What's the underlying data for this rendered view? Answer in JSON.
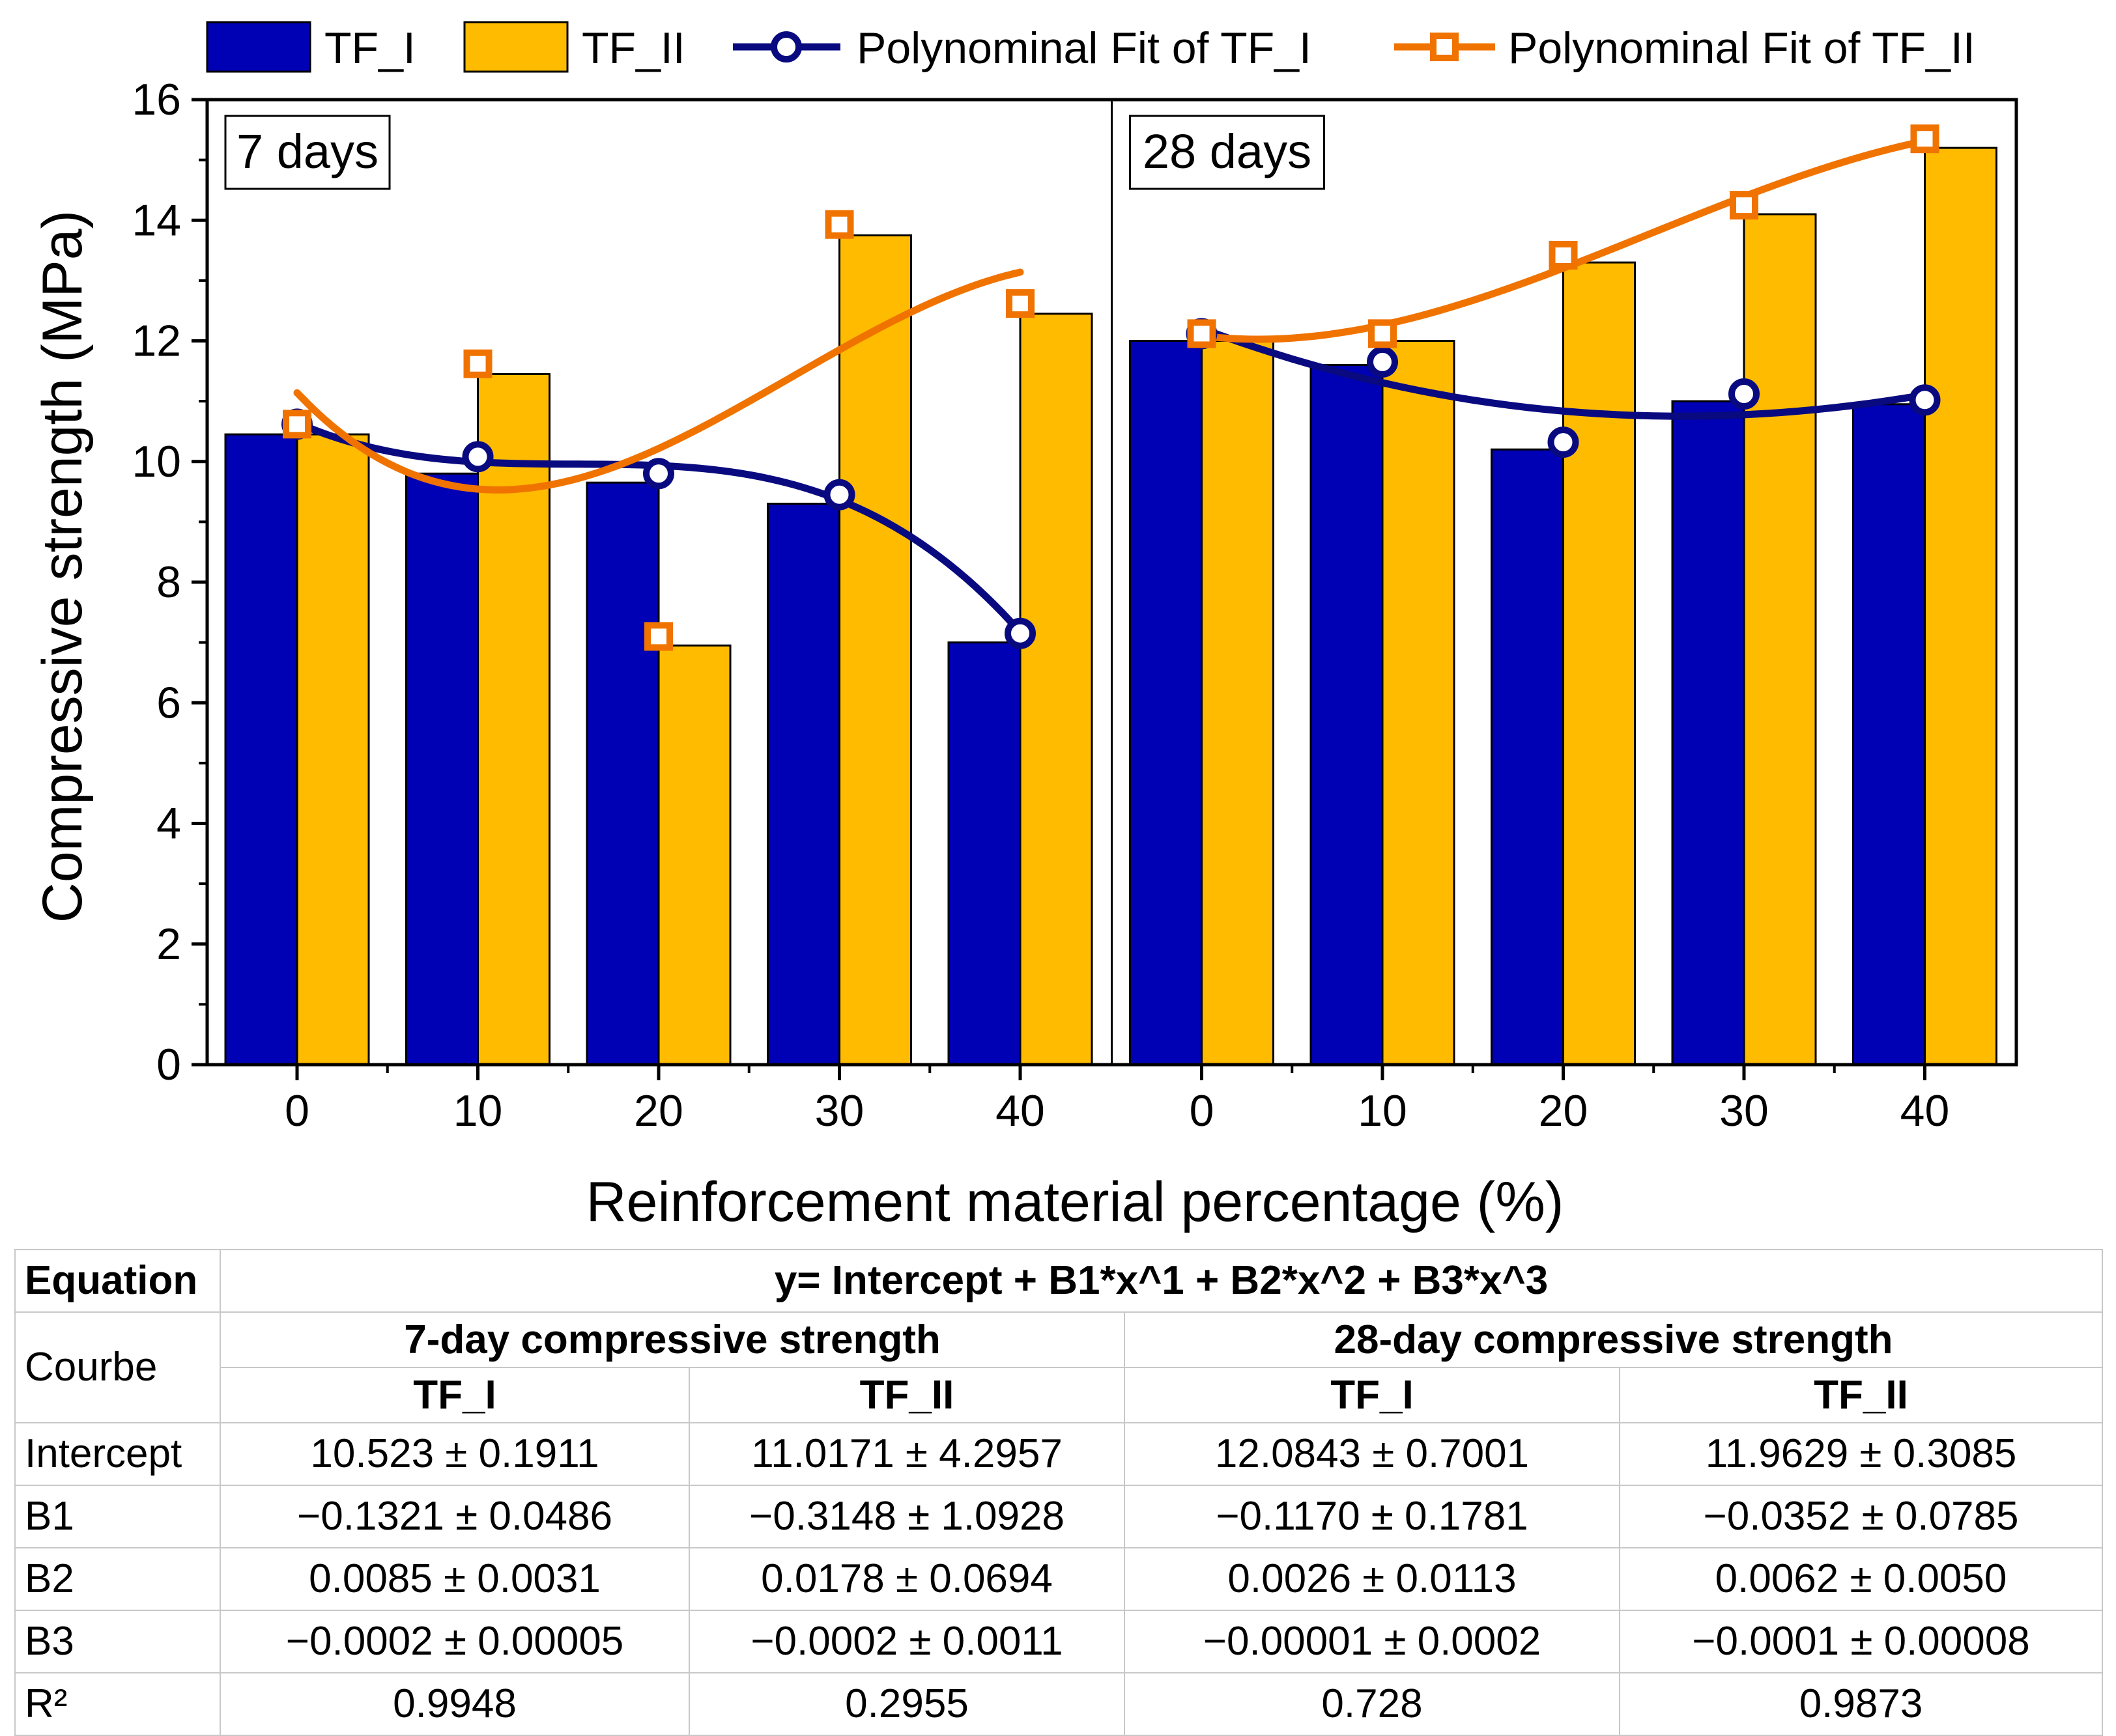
{
  "chart_data": {
    "type": "bar",
    "ylabel": "Compressive strength (MPa)",
    "xlabel": "Reinforcement material percentage (%)",
    "ylim": [
      0,
      16
    ],
    "yticks": [
      "0",
      "2",
      "4",
      "6",
      "8",
      "10",
      "12",
      "14",
      "16"
    ],
    "categories": [
      "0",
      "10",
      "20",
      "30",
      "40"
    ],
    "panels": [
      {
        "label": "7 days",
        "series": [
          {
            "name": "TF_I",
            "values": [
              10.45,
              9.8,
              9.65,
              9.3,
              7.0
            ]
          },
          {
            "name": "TF_II",
            "values": [
              10.45,
              11.45,
              6.95,
              13.75,
              12.45
            ]
          }
        ],
        "markers": [
          {
            "name": "Polynominal Fit of TF_I",
            "values": [
              10.62,
              10.08,
              9.8,
              9.45,
              7.15
            ]
          },
          {
            "name": "Polynominal Fit of TF_II",
            "values": [
              10.62,
              11.62,
              7.1,
              13.93,
              12.62
            ]
          }
        ]
      },
      {
        "label": "28 days",
        "series": [
          {
            "name": "TF_I",
            "values": [
              12.0,
              11.6,
              10.2,
              11.0,
              10.95
            ]
          },
          {
            "name": "TF_II",
            "values": [
              12.0,
              12.0,
              13.3,
              14.1,
              15.2
            ]
          }
        ],
        "markers": [
          {
            "name": "Polynominal Fit of TF_I",
            "values": [
              12.12,
              11.65,
              10.32,
              11.12,
              11.02
            ]
          },
          {
            "name": "Polynominal Fit of TF_II",
            "values": [
              12.12,
              12.12,
              13.42,
              14.25,
              15.35
            ]
          }
        ]
      }
    ],
    "legend": {
      "position": "top",
      "entries": [
        "TF_I",
        "TF_II",
        "Polynominal Fit of TF_I",
        "Polynominal Fit of TF_II"
      ]
    }
  },
  "colors": {
    "tf1_bar": "#0000b4",
    "tf2_bar": "#ffbb00",
    "tf1_fit": "#0a0a80",
    "tf2_fit": "#f07300"
  },
  "table": {
    "equation_label": "Equation",
    "equation": "y= Intercept + B1*x^1 + B2*x^2 + B3*x^3",
    "courbe_label": "Courbe",
    "group_7": "7-day compressive strength",
    "group_28": "28-day compressive strength",
    "col_tf1": "TF_I",
    "col_tf2": "TF_II",
    "rows": [
      {
        "label": "Intercept",
        "v": [
          "10.523 ± 0.1911",
          "11.0171 ± 4.2957",
          "12.0843 ± 0.7001",
          "11.9629 ± 0.3085"
        ]
      },
      {
        "label": "B1",
        "v": [
          "−0.1321 ± 0.0486",
          "−0.3148 ± 1.0928",
          "−0.1170 ± 0.1781",
          "−0.0352 ± 0.0785"
        ]
      },
      {
        "label": "B2",
        "v": [
          "0.0085 ± 0.0031",
          "0.0178 ± 0.0694",
          "0.0026 ± 0.0113",
          "0.0062 ± 0.0050"
        ]
      },
      {
        "label": "B3",
        "v": [
          "−0.0002 ± 0.00005",
          "−0.0002 ± 0.0011",
          "−0.00001 ± 0.0002",
          "−0.0001 ± 0.00008"
        ]
      },
      {
        "label": "R²",
        "v": [
          "0.9948",
          "0.2955",
          "0.728",
          "0.9873"
        ]
      }
    ]
  }
}
